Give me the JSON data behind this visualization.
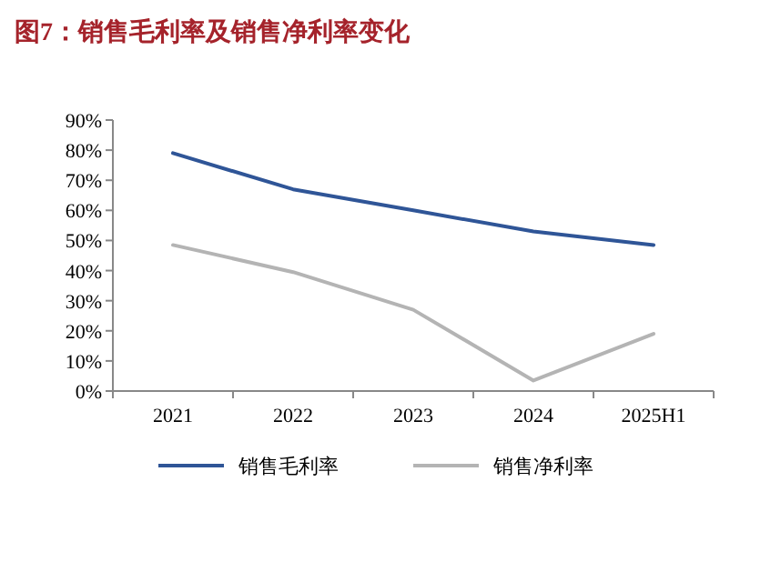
{
  "chart_data": {
    "type": "line",
    "title": "图7：销售毛利率及销售净利率变化",
    "categories": [
      "2021",
      "2022",
      "2023",
      "2024",
      "2025H1"
    ],
    "series": [
      {
        "name": "销售毛利率",
        "color": "#2f5597",
        "values": [
          79,
          67,
          60,
          53,
          48.5
        ]
      },
      {
        "name": "销售净利率",
        "color": "#b4b4b4",
        "values": [
          48.5,
          39.5,
          27,
          3.5,
          19
        ]
      }
    ],
    "ylim": [
      0,
      90
    ],
    "yticks": [
      {
        "value": 0,
        "label": "0%"
      },
      {
        "value": 10,
        "label": "10%"
      },
      {
        "value": 20,
        "label": "20%"
      },
      {
        "value": 30,
        "label": "30%"
      },
      {
        "value": 40,
        "label": "40%"
      },
      {
        "value": 50,
        "label": "50%"
      },
      {
        "value": 60,
        "label": "60%"
      },
      {
        "value": 70,
        "label": "70%"
      },
      {
        "value": 80,
        "label": "80%"
      },
      {
        "value": 90,
        "label": "90%"
      }
    ],
    "legend": "bottom",
    "grid": false,
    "marker": "none",
    "line_style": "solid"
  }
}
